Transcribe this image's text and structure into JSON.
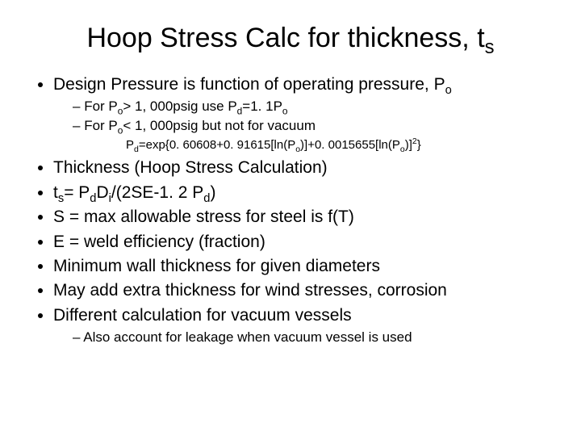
{
  "title_html": "Hoop Stress Calc for thickness, t<sub>s</sub>",
  "bullets": {
    "b0": "Design Pressure is function of operating pressure, P<sub>o</sub>",
    "b0_s0": "For P<sub>o</sub>&gt; 1, 000psig use P<sub>d</sub>=1. 1P<sub>o</sub>",
    "b0_s1": "For P<sub>o</sub>&lt; 1, 000psig but not for vacuum",
    "b0_formula": "P<sub>d</sub>=exp{0. 60608+0. 91615[ln(P<sub>o</sub>)]+0. 0015655[ln(P<sub>o</sub>)]<sup>2</sup>}",
    "b1": "Thickness (Hoop Stress Calculation)",
    "b2": "t<sub>s</sub>= P<sub>d</sub>D<sub>i</sub>/(2SE-1. 2 P<sub>d</sub>)",
    "b3": "S = max allowable stress for steel is f(T)",
    "b4": "E = weld efficiency (fraction)",
    "b5": "Minimum wall thickness for given diameters",
    "b6": "May add extra thickness for wind stresses, corrosion",
    "b7": "Different calculation for vacuum vessels",
    "b7_s0": "Also account for leakage when vacuum vessel is used"
  }
}
